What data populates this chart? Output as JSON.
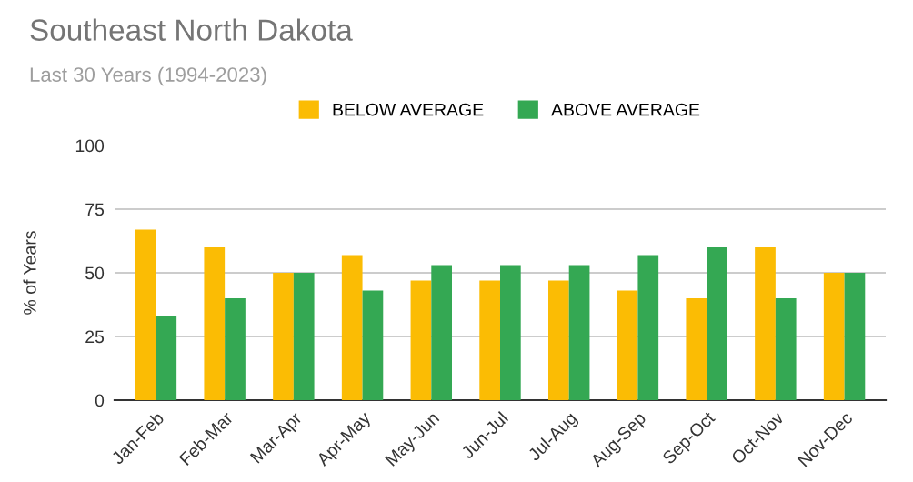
{
  "chart_data": {
    "type": "bar",
    "title": "Southeast North Dakota",
    "subtitle": "Last 30 Years (1994-2023)",
    "ylabel": "% of Years",
    "categories": [
      "Jan-Feb",
      "Feb-Mar",
      "Mar-Apr",
      "Apr-May",
      "May-Jun",
      "Jun-Jul",
      "Jul-Aug",
      "Aug-Sep",
      "Sep-Oct",
      "Oct-Nov",
      "Nov-Dec"
    ],
    "series": [
      {
        "name": "BELOW AVERAGE",
        "color": "#fbbc04",
        "values": [
          67,
          60,
          50,
          57,
          47,
          47,
          47,
          43,
          40,
          60,
          50
        ]
      },
      {
        "name": "ABOVE AVERAGE",
        "color": "#34a853",
        "values": [
          33,
          40,
          50,
          43,
          53,
          53,
          53,
          57,
          60,
          40,
          50
        ]
      }
    ],
    "ylim": [
      0,
      100
    ],
    "yticks": [
      0,
      25,
      50,
      75,
      100
    ],
    "grid": "y",
    "legend": "top"
  }
}
